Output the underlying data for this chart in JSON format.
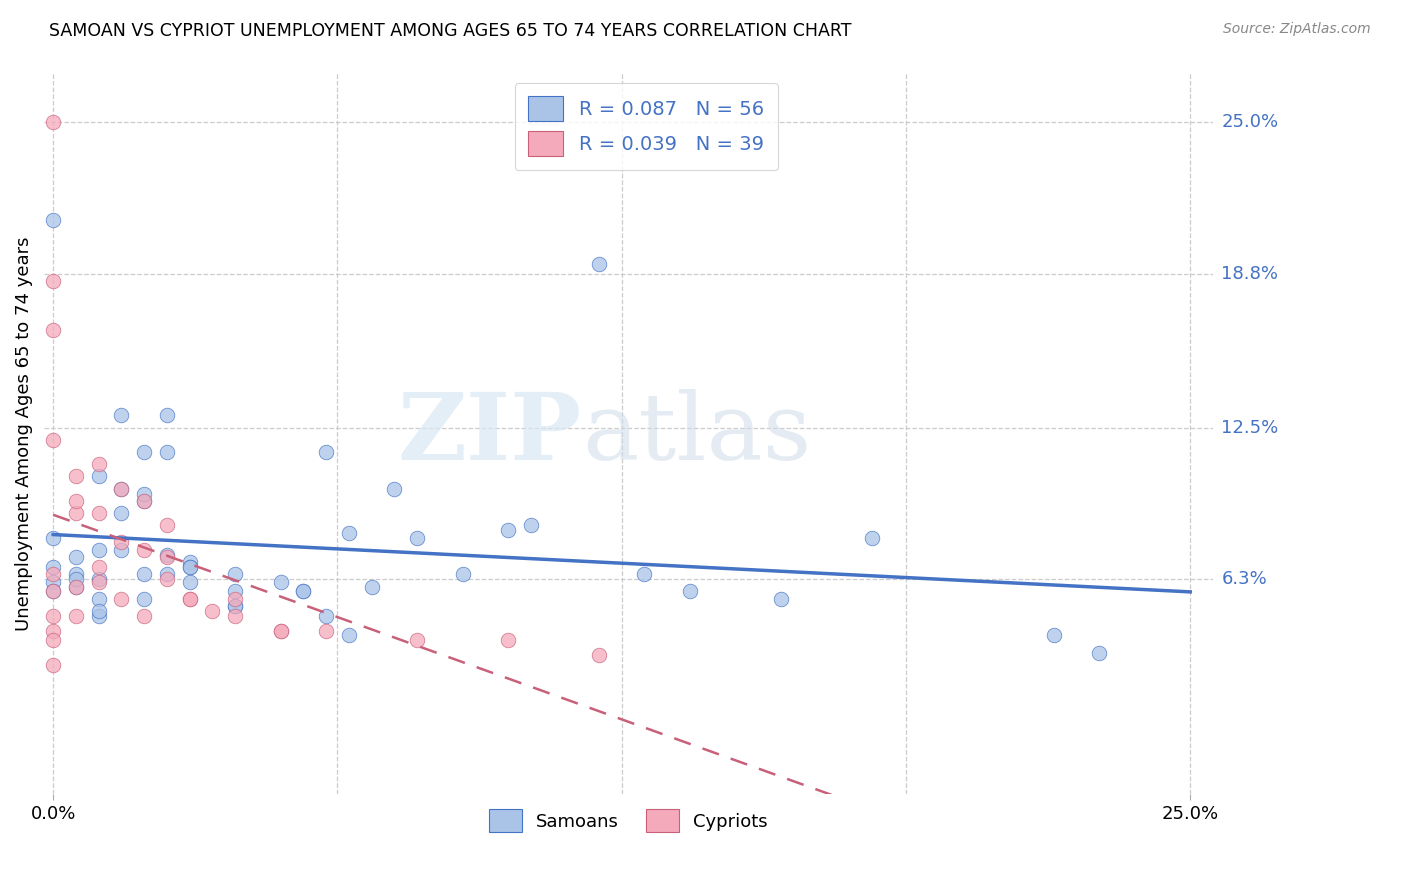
{
  "title": "SAMOAN VS CYPRIOT UNEMPLOYMENT AMONG AGES 65 TO 74 YEARS CORRELATION CHART",
  "source": "Source: ZipAtlas.com",
  "ylabel": "Unemployment Among Ages 65 to 74 years",
  "xlim": [
    -0.002,
    0.255
  ],
  "ylim": [
    -0.025,
    0.27
  ],
  "ytick_labels": [
    "6.3%",
    "12.5%",
    "18.8%",
    "25.0%"
  ],
  "ytick_values": [
    0.063,
    0.125,
    0.188,
    0.25
  ],
  "xtick_labels": [
    "0.0%",
    "25.0%"
  ],
  "xtick_values": [
    0.0,
    0.25
  ],
  "xgrid_values": [
    0.0,
    0.0625,
    0.125,
    0.1875,
    0.25
  ],
  "samoans_x": [
    0.0,
    0.0,
    0.0,
    0.005,
    0.005,
    0.01,
    0.01,
    0.01,
    0.01,
    0.015,
    0.015,
    0.015,
    0.02,
    0.02,
    0.02,
    0.025,
    0.025,
    0.03,
    0.03,
    0.04,
    0.04,
    0.04,
    0.05,
    0.055,
    0.06,
    0.065,
    0.07,
    0.08,
    0.09,
    0.1,
    0.105,
    0.12,
    0.13,
    0.14,
    0.16,
    0.18,
    0.22,
    0.23,
    0.005,
    0.01,
    0.02,
    0.025,
    0.03,
    0.04,
    0.055,
    0.06,
    0.065,
    0.075,
    0.0,
    0.0,
    0.005,
    0.01,
    0.015,
    0.02,
    0.025,
    0.03
  ],
  "samoans_y": [
    0.068,
    0.062,
    0.058,
    0.065,
    0.06,
    0.105,
    0.075,
    0.063,
    0.055,
    0.13,
    0.1,
    0.075,
    0.115,
    0.095,
    0.065,
    0.115,
    0.065,
    0.07,
    0.062,
    0.065,
    0.058,
    0.052,
    0.062,
    0.058,
    0.115,
    0.082,
    0.06,
    0.08,
    0.065,
    0.083,
    0.085,
    0.192,
    0.065,
    0.058,
    0.055,
    0.08,
    0.04,
    0.033,
    0.072,
    0.048,
    0.055,
    0.073,
    0.068,
    0.052,
    0.058,
    0.048,
    0.04,
    0.1,
    0.21,
    0.08,
    0.063,
    0.05,
    0.09,
    0.098,
    0.13,
    0.068
  ],
  "cypriots_x": [
    0.0,
    0.0,
    0.0,
    0.0,
    0.0,
    0.0,
    0.0,
    0.005,
    0.005,
    0.005,
    0.01,
    0.01,
    0.015,
    0.015,
    0.02,
    0.02,
    0.025,
    0.025,
    0.03,
    0.04,
    0.05,
    0.0,
    0.0,
    0.0,
    0.005,
    0.005,
    0.01,
    0.01,
    0.015,
    0.02,
    0.025,
    0.03,
    0.035,
    0.04,
    0.05,
    0.06,
    0.08,
    0.1,
    0.12
  ],
  "cypriots_y": [
    0.25,
    0.185,
    0.165,
    0.12,
    0.065,
    0.058,
    0.048,
    0.105,
    0.09,
    0.048,
    0.11,
    0.062,
    0.1,
    0.055,
    0.095,
    0.048,
    0.085,
    0.063,
    0.055,
    0.055,
    0.042,
    0.042,
    0.038,
    0.028,
    0.095,
    0.06,
    0.09,
    0.068,
    0.078,
    0.075,
    0.072,
    0.055,
    0.05,
    0.048,
    0.042,
    0.042,
    0.038,
    0.038,
    0.032
  ],
  "samoan_color": "#aac4e8",
  "cypriot_color": "#f5aabb",
  "samoan_line_color": "#4472c4",
  "cypriot_line_color": "#c8607a",
  "samoan_R": 0.087,
  "samoan_N": 56,
  "cypriot_R": 0.039,
  "cypriot_N": 39,
  "watermark_zip": "ZIP",
  "watermark_atlas": "atlas",
  "grid_color": "#cccccc",
  "background_color": "#ffffff"
}
